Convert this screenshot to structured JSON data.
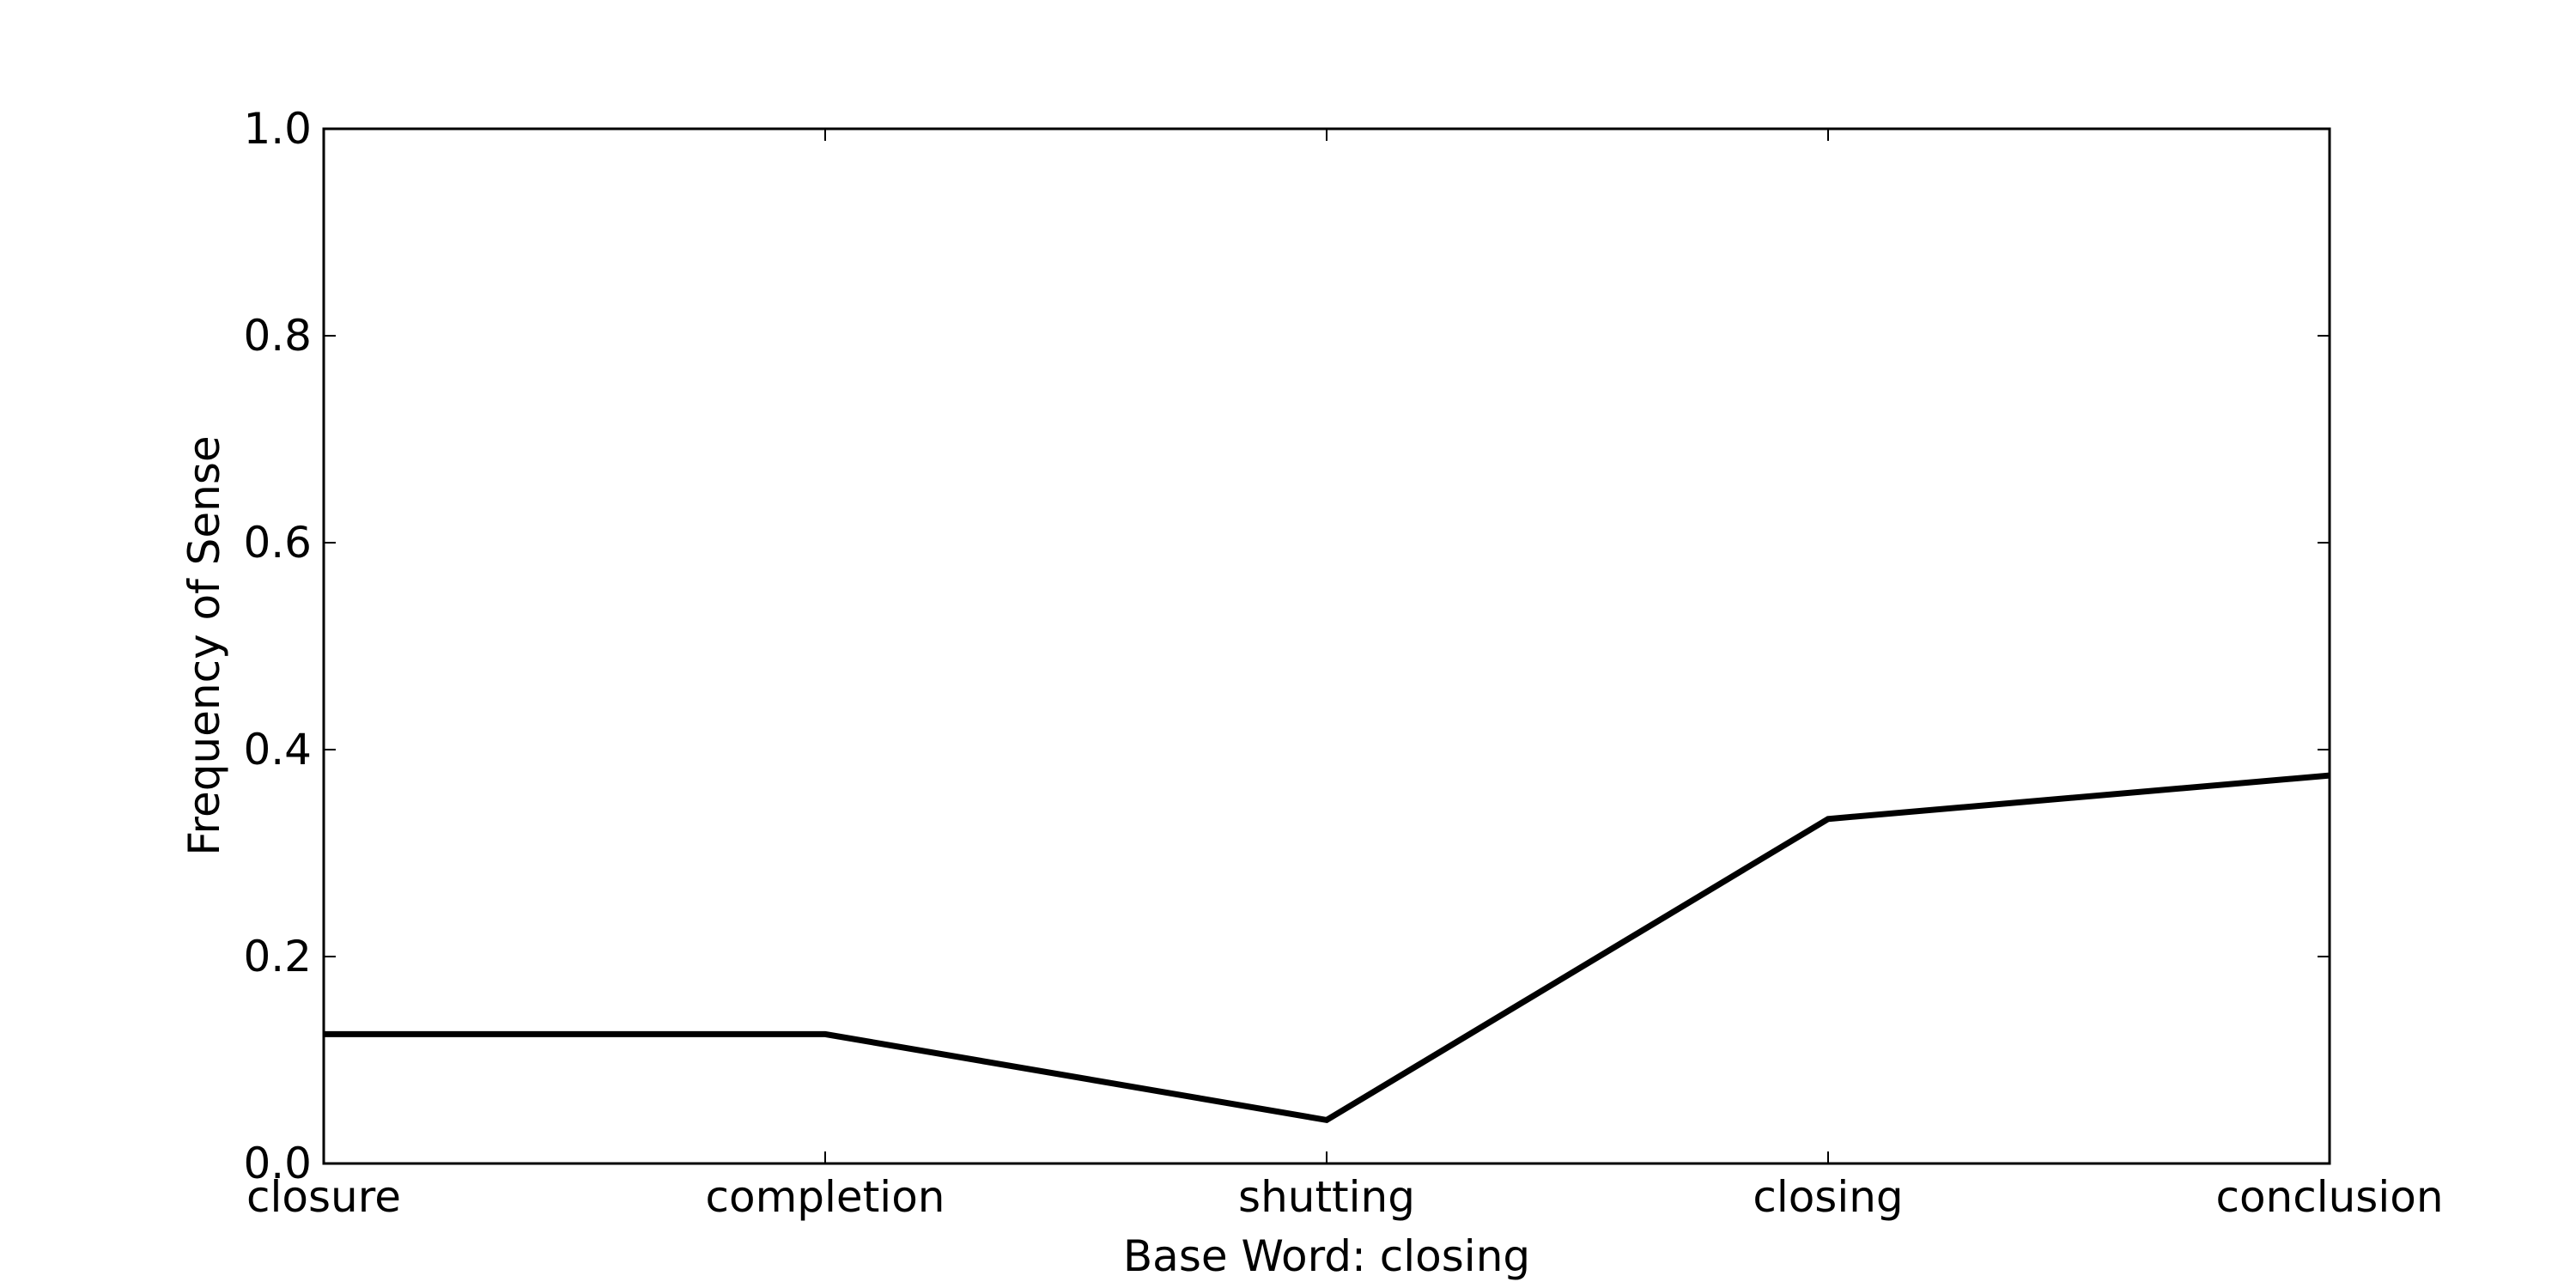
{
  "chart_data": {
    "type": "line",
    "title": "",
    "xlabel": "Base Word: closing",
    "ylabel": "Frequency of Sense",
    "categories": [
      "closure",
      "completion",
      "shutting",
      "closing",
      "conclusion"
    ],
    "series": [
      {
        "values": [
          0.125,
          0.125,
          0.042,
          0.333,
          0.375
        ],
        "color": "#000000"
      }
    ],
    "ylim": [
      0.0,
      1.0
    ],
    "yticks": [
      "0.0",
      "0.2",
      "0.4",
      "0.6",
      "0.8",
      "1.0"
    ],
    "grid": false,
    "legend": false
  }
}
